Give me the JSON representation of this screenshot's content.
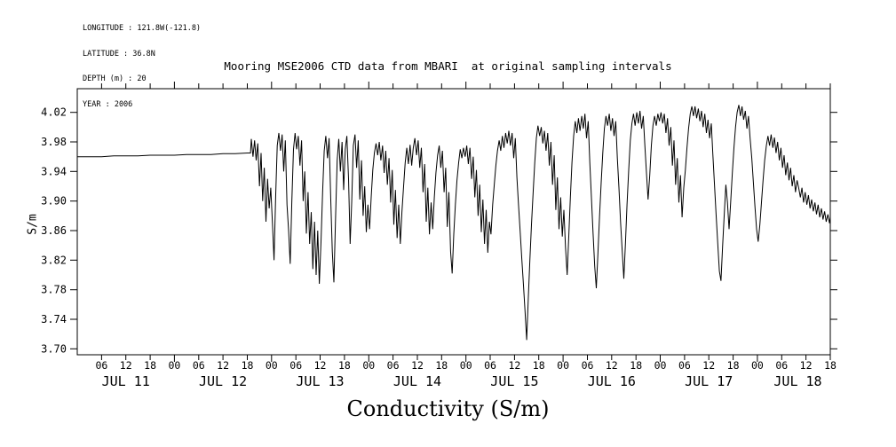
{
  "metadata": {
    "lines": [
      "LONGITUDE : 121.8W(-121.8)",
      "LATITUDE : 36.8N",
      "DEPTH (m) : 20",
      "YEAR : 2006"
    ]
  },
  "chart_data": {
    "type": "line",
    "title": "Mooring MSE2006 CTD data from MBARI  at original sampling intervals",
    "ylabel": "S/m",
    "xlabel": "Conductivity (S/m)",
    "series_name": "conductivity",
    "x_unit": "hours from JUL 11 2006 00:00",
    "xlim": [
      0,
      186
    ],
    "ylim": [
      3.692,
      4.052
    ],
    "yticks": [
      3.7,
      3.74,
      3.78,
      3.82,
      3.86,
      3.9,
      3.94,
      3.98,
      4.02
    ],
    "xtick_hours": [
      6,
      12,
      18,
      24,
      30,
      36,
      42,
      48,
      54,
      60,
      66,
      72,
      78,
      84,
      90,
      96,
      102,
      108,
      114,
      120,
      126,
      132,
      138,
      144,
      150,
      156,
      162,
      168,
      174,
      180,
      186
    ],
    "day_labels": [
      {
        "t": 12,
        "label": "JUL 11"
      },
      {
        "t": 36,
        "label": "JUL 12"
      },
      {
        "t": 60,
        "label": "JUL 13"
      },
      {
        "t": 84,
        "label": "JUL 14"
      },
      {
        "t": 108,
        "label": "JUL 15"
      },
      {
        "t": 132,
        "label": "JUL 16"
      },
      {
        "t": 156,
        "label": "JUL 17"
      },
      {
        "t": 178,
        "label": "JUL 18"
      }
    ],
    "grid": false,
    "line_color": "#000000",
    "points": [
      [
        0,
        3.96
      ],
      [
        3,
        3.96
      ],
      [
        6,
        3.96
      ],
      [
        9,
        3.961
      ],
      [
        12,
        3.961
      ],
      [
        15,
        3.961
      ],
      [
        18,
        3.962
      ],
      [
        21,
        3.962
      ],
      [
        24,
        3.962
      ],
      [
        27,
        3.963
      ],
      [
        30,
        3.963
      ],
      [
        33,
        3.963
      ],
      [
        36,
        3.964
      ],
      [
        39,
        3.964
      ],
      [
        42,
        3.965
      ],
      [
        42.8,
        3.965
      ],
      [
        43,
        3.984
      ],
      [
        43.4,
        3.96
      ],
      [
        43.8,
        3.982
      ],
      [
        44.2,
        3.955
      ],
      [
        44.6,
        3.978
      ],
      [
        45,
        3.92
      ],
      [
        45.4,
        3.965
      ],
      [
        45.8,
        3.9
      ],
      [
        46.2,
        3.945
      ],
      [
        46.6,
        3.872
      ],
      [
        47,
        3.93
      ],
      [
        47.4,
        3.89
      ],
      [
        47.8,
        3.918
      ],
      [
        48.2,
        3.87
      ],
      [
        48.6,
        3.82
      ],
      [
        49,
        3.905
      ],
      [
        49.4,
        3.975
      ],
      [
        49.8,
        3.992
      ],
      [
        50.2,
        3.968
      ],
      [
        50.6,
        3.99
      ],
      [
        51,
        3.94
      ],
      [
        51.4,
        3.982
      ],
      [
        51.8,
        3.895
      ],
      [
        52.2,
        3.86
      ],
      [
        52.6,
        3.815
      ],
      [
        53,
        3.898
      ],
      [
        53.4,
        3.97
      ],
      [
        53.8,
        3.992
      ],
      [
        54.2,
        3.97
      ],
      [
        54.6,
        3.988
      ],
      [
        55,
        3.948
      ],
      [
        55.4,
        3.982
      ],
      [
        55.8,
        3.9
      ],
      [
        56.2,
        3.94
      ],
      [
        56.6,
        3.856
      ],
      [
        57,
        3.912
      ],
      [
        57.4,
        3.842
      ],
      [
        57.8,
        3.885
      ],
      [
        58.2,
        3.808
      ],
      [
        58.6,
        3.872
      ],
      [
        59,
        3.8
      ],
      [
        59.4,
        3.86
      ],
      [
        59.8,
        3.788
      ],
      [
        60.2,
        3.845
      ],
      [
        60.6,
        3.912
      ],
      [
        61,
        3.968
      ],
      [
        61.4,
        3.988
      ],
      [
        61.8,
        3.958
      ],
      [
        62.2,
        3.985
      ],
      [
        62.6,
        3.905
      ],
      [
        63,
        3.832
      ],
      [
        63.4,
        3.79
      ],
      [
        63.8,
        3.878
      ],
      [
        64.2,
        3.955
      ],
      [
        64.6,
        3.984
      ],
      [
        65,
        3.94
      ],
      [
        65.4,
        3.98
      ],
      [
        65.8,
        3.915
      ],
      [
        66.2,
        3.97
      ],
      [
        66.6,
        3.988
      ],
      [
        67,
        3.93
      ],
      [
        67.4,
        3.842
      ],
      [
        67.8,
        3.9
      ],
      [
        68.2,
        3.975
      ],
      [
        68.6,
        3.99
      ],
      [
        69,
        3.945
      ],
      [
        69.4,
        3.982
      ],
      [
        69.8,
        3.902
      ],
      [
        70.2,
        3.955
      ],
      [
        70.6,
        3.88
      ],
      [
        71,
        3.92
      ],
      [
        71.4,
        3.858
      ],
      [
        71.8,
        3.895
      ],
      [
        72.2,
        3.862
      ],
      [
        72.6,
        3.905
      ],
      [
        73,
        3.942
      ],
      [
        73.4,
        3.965
      ],
      [
        73.8,
        3.978
      ],
      [
        74.2,
        3.962
      ],
      [
        74.6,
        3.98
      ],
      [
        75,
        3.955
      ],
      [
        75.4,
        3.975
      ],
      [
        75.8,
        3.938
      ],
      [
        76.2,
        3.968
      ],
      [
        76.6,
        3.922
      ],
      [
        77,
        3.958
      ],
      [
        77.4,
        3.898
      ],
      [
        77.8,
        3.942
      ],
      [
        78.2,
        3.868
      ],
      [
        78.6,
        3.915
      ],
      [
        79,
        3.85
      ],
      [
        79.4,
        3.895
      ],
      [
        79.8,
        3.842
      ],
      [
        80.2,
        3.885
      ],
      [
        80.6,
        3.92
      ],
      [
        81,
        3.952
      ],
      [
        81.4,
        3.972
      ],
      [
        81.8,
        3.95
      ],
      [
        82.2,
        3.976
      ],
      [
        82.6,
        3.948
      ],
      [
        83,
        3.972
      ],
      [
        83.4,
        3.985
      ],
      [
        83.8,
        3.962
      ],
      [
        84.2,
        3.982
      ],
      [
        84.6,
        3.945
      ],
      [
        85,
        3.972
      ],
      [
        85.4,
        3.912
      ],
      [
        85.8,
        3.95
      ],
      [
        86.2,
        3.872
      ],
      [
        86.6,
        3.918
      ],
      [
        87,
        3.855
      ],
      [
        87.4,
        3.898
      ],
      [
        87.8,
        3.862
      ],
      [
        88.2,
        3.905
      ],
      [
        88.6,
        3.938
      ],
      [
        89,
        3.962
      ],
      [
        89.4,
        3.975
      ],
      [
        89.8,
        3.945
      ],
      [
        90.2,
        3.968
      ],
      [
        90.6,
        3.912
      ],
      [
        91,
        3.945
      ],
      [
        91.4,
        3.865
      ],
      [
        91.8,
        3.912
      ],
      [
        92.2,
        3.832
      ],
      [
        92.6,
        3.802
      ],
      [
        93,
        3.855
      ],
      [
        93.4,
        3.895
      ],
      [
        93.8,
        3.928
      ],
      [
        94.2,
        3.952
      ],
      [
        94.6,
        3.97
      ],
      [
        95,
        3.958
      ],
      [
        95.4,
        3.972
      ],
      [
        95.8,
        3.96
      ],
      [
        96.2,
        3.975
      ],
      [
        96.6,
        3.95
      ],
      [
        97,
        3.972
      ],
      [
        97.4,
        3.93
      ],
      [
        97.8,
        3.96
      ],
      [
        98.2,
        3.905
      ],
      [
        98.6,
        3.942
      ],
      [
        99,
        3.88
      ],
      [
        99.4,
        3.922
      ],
      [
        99.8,
        3.858
      ],
      [
        100.2,
        3.902
      ],
      [
        100.6,
        3.842
      ],
      [
        101,
        3.888
      ],
      [
        101.4,
        3.83
      ],
      [
        101.8,
        3.872
      ],
      [
        102.2,
        3.855
      ],
      [
        102.6,
        3.895
      ],
      [
        103,
        3.922
      ],
      [
        103.4,
        3.948
      ],
      [
        103.8,
        3.968
      ],
      [
        104.2,
        3.982
      ],
      [
        104.6,
        3.968
      ],
      [
        105,
        3.988
      ],
      [
        105.4,
        3.972
      ],
      [
        105.8,
        3.992
      ],
      [
        106.2,
        3.978
      ],
      [
        106.6,
        3.995
      ],
      [
        107,
        3.975
      ],
      [
        107.4,
        3.992
      ],
      [
        107.8,
        3.958
      ],
      [
        108.2,
        3.985
      ],
      [
        108.6,
        3.932
      ],
      [
        109,
        3.895
      ],
      [
        109.4,
        3.858
      ],
      [
        109.8,
        3.822
      ],
      [
        110.2,
        3.788
      ],
      [
        110.6,
        3.752
      ],
      [
        111,
        3.712
      ],
      [
        111.4,
        3.768
      ],
      [
        111.8,
        3.82
      ],
      [
        112.2,
        3.868
      ],
      [
        112.6,
        3.912
      ],
      [
        113,
        3.952
      ],
      [
        113.4,
        3.985
      ],
      [
        113.8,
        4.002
      ],
      [
        114.2,
        3.988
      ],
      [
        114.6,
        4.0
      ],
      [
        115,
        3.978
      ],
      [
        115.4,
        3.995
      ],
      [
        115.8,
        3.968
      ],
      [
        116.2,
        3.992
      ],
      [
        116.6,
        3.948
      ],
      [
        117,
        3.98
      ],
      [
        117.4,
        3.922
      ],
      [
        117.8,
        3.962
      ],
      [
        118.2,
        3.888
      ],
      [
        118.6,
        3.932
      ],
      [
        119,
        3.862
      ],
      [
        119.4,
        3.905
      ],
      [
        119.8,
        3.852
      ],
      [
        120.2,
        3.888
      ],
      [
        120.6,
        3.838
      ],
      [
        121,
        3.8
      ],
      [
        121.4,
        3.852
      ],
      [
        121.8,
        3.905
      ],
      [
        122.2,
        3.952
      ],
      [
        122.6,
        3.988
      ],
      [
        123,
        4.008
      ],
      [
        123.4,
        3.992
      ],
      [
        123.8,
        4.012
      ],
      [
        124.2,
        3.995
      ],
      [
        124.6,
        4.015
      ],
      [
        125,
        3.998
      ],
      [
        125.4,
        4.018
      ],
      [
        125.8,
        3.985
      ],
      [
        126.2,
        4.008
      ],
      [
        126.6,
        3.952
      ],
      [
        127,
        3.905
      ],
      [
        127.4,
        3.858
      ],
      [
        127.8,
        3.812
      ],
      [
        128.2,
        3.782
      ],
      [
        128.6,
        3.828
      ],
      [
        129,
        3.878
      ],
      [
        129.4,
        3.925
      ],
      [
        129.8,
        3.965
      ],
      [
        130.2,
        3.998
      ],
      [
        130.6,
        4.015
      ],
      [
        131,
        4.002
      ],
      [
        131.4,
        4.018
      ],
      [
        131.8,
        3.995
      ],
      [
        132.2,
        4.012
      ],
      [
        132.6,
        3.988
      ],
      [
        133,
        4.008
      ],
      [
        133.4,
        3.958
      ],
      [
        133.8,
        3.918
      ],
      [
        134.2,
        3.872
      ],
      [
        134.6,
        3.832
      ],
      [
        135,
        3.795
      ],
      [
        135.4,
        3.842
      ],
      [
        135.8,
        3.895
      ],
      [
        136.2,
        3.942
      ],
      [
        136.6,
        3.982
      ],
      [
        137,
        4.005
      ],
      [
        137.4,
        4.018
      ],
      [
        137.8,
        4.002
      ],
      [
        138.2,
        4.02
      ],
      [
        138.6,
        4.005
      ],
      [
        139,
        4.022
      ],
      [
        139.4,
        3.998
      ],
      [
        139.8,
        4.015
      ],
      [
        140.2,
        3.975
      ],
      [
        140.6,
        3.938
      ],
      [
        141,
        3.902
      ],
      [
        141.4,
        3.935
      ],
      [
        141.8,
        3.975
      ],
      [
        142.2,
        4.002
      ],
      [
        142.6,
        4.015
      ],
      [
        143,
        4.002
      ],
      [
        143.4,
        4.018
      ],
      [
        143.8,
        4.008
      ],
      [
        144.2,
        4.02
      ],
      [
        144.6,
        4.005
      ],
      [
        145,
        4.018
      ],
      [
        145.4,
        3.992
      ],
      [
        145.8,
        4.012
      ],
      [
        146.2,
        3.975
      ],
      [
        146.6,
        4.0
      ],
      [
        147,
        3.948
      ],
      [
        147.4,
        3.982
      ],
      [
        147.8,
        3.922
      ],
      [
        148.2,
        3.958
      ],
      [
        148.6,
        3.898
      ],
      [
        149,
        3.935
      ],
      [
        149.4,
        3.878
      ],
      [
        149.8,
        3.918
      ],
      [
        150.2,
        3.942
      ],
      [
        150.6,
        3.972
      ],
      [
        151,
        3.998
      ],
      [
        151.4,
        4.018
      ],
      [
        151.8,
        4.028
      ],
      [
        152.2,
        4.015
      ],
      [
        152.6,
        4.028
      ],
      [
        153,
        4.012
      ],
      [
        153.4,
        4.025
      ],
      [
        153.8,
        4.008
      ],
      [
        154.2,
        4.022
      ],
      [
        154.6,
        4.0
      ],
      [
        155,
        4.018
      ],
      [
        155.4,
        3.992
      ],
      [
        155.8,
        4.01
      ],
      [
        156.2,
        3.985
      ],
      [
        156.6,
        4.005
      ],
      [
        157,
        3.962
      ],
      [
        157.4,
        3.922
      ],
      [
        157.8,
        3.882
      ],
      [
        158.2,
        3.842
      ],
      [
        158.6,
        3.805
      ],
      [
        159,
        3.792
      ],
      [
        159.4,
        3.838
      ],
      [
        159.8,
        3.882
      ],
      [
        160.2,
        3.922
      ],
      [
        160.6,
        3.898
      ],
      [
        161,
        3.862
      ],
      [
        161.4,
        3.898
      ],
      [
        161.8,
        3.938
      ],
      [
        162.2,
        3.972
      ],
      [
        162.6,
        4.0
      ],
      [
        163,
        4.02
      ],
      [
        163.4,
        4.03
      ],
      [
        163.8,
        4.015
      ],
      [
        164.2,
        4.028
      ],
      [
        164.6,
        4.01
      ],
      [
        165,
        4.022
      ],
      [
        165.4,
        3.998
      ],
      [
        165.8,
        4.015
      ],
      [
        166.2,
        3.985
      ],
      [
        166.6,
        3.958
      ],
      [
        167,
        3.925
      ],
      [
        167.4,
        3.892
      ],
      [
        167.8,
        3.862
      ],
      [
        168.2,
        3.845
      ],
      [
        168.6,
        3.868
      ],
      [
        169,
        3.898
      ],
      [
        169.4,
        3.928
      ],
      [
        169.8,
        3.955
      ],
      [
        170.2,
        3.975
      ],
      [
        170.6,
        3.988
      ],
      [
        171,
        3.975
      ],
      [
        171.4,
        3.99
      ],
      [
        171.8,
        3.972
      ],
      [
        172.2,
        3.986
      ],
      [
        172.6,
        3.965
      ],
      [
        173,
        3.98
      ],
      [
        173.4,
        3.955
      ],
      [
        173.8,
        3.972
      ],
      [
        174.2,
        3.945
      ],
      [
        174.6,
        3.962
      ],
      [
        175,
        3.935
      ],
      [
        175.4,
        3.952
      ],
      [
        175.8,
        3.928
      ],
      [
        176.2,
        3.945
      ],
      [
        176.6,
        3.92
      ],
      [
        177,
        3.935
      ],
      [
        177.4,
        3.912
      ],
      [
        177.8,
        3.928
      ],
      [
        178.2,
        3.918
      ],
      [
        178.6,
        3.905
      ],
      [
        179,
        3.918
      ],
      [
        179.4,
        3.898
      ],
      [
        179.8,
        3.912
      ],
      [
        180.2,
        3.895
      ],
      [
        180.6,
        3.908
      ],
      [
        181,
        3.89
      ],
      [
        181.4,
        3.902
      ],
      [
        181.8,
        3.886
      ],
      [
        182.2,
        3.898
      ],
      [
        182.6,
        3.882
      ],
      [
        183,
        3.895
      ],
      [
        183.4,
        3.878
      ],
      [
        183.8,
        3.89
      ],
      [
        184.2,
        3.875
      ],
      [
        184.6,
        3.886
      ],
      [
        185,
        3.872
      ],
      [
        185.4,
        3.882
      ],
      [
        185.8,
        3.87
      ],
      [
        186,
        3.878
      ]
    ]
  }
}
